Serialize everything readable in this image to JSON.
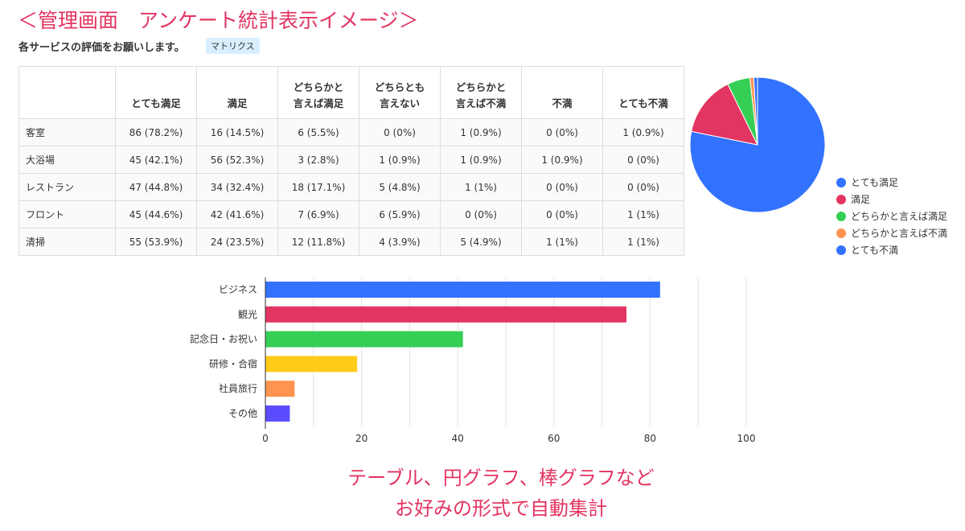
{
  "title": "＜管理画面　アンケート統計表示イメージ＞",
  "question": "各サービスの評価をお願いします。",
  "badge": "マトリクス",
  "table": {
    "headers": [
      "",
      "とても満足",
      "満足",
      "どちらかと\n言えば満足",
      "どちらとも\n言えない",
      "どちらかと\n言えば不満",
      "不満",
      "とても不満"
    ],
    "rows": [
      [
        "客室",
        "86 (78.2%)",
        "16 (14.5%)",
        "6 (5.5%)",
        "0 (0%)",
        "1 (0.9%)",
        "0 (0%)",
        "1 (0.9%)"
      ],
      [
        "大浴場",
        "45 (42.1%)",
        "56 (52.3%)",
        "3 (2.8%)",
        "1 (0.9%)",
        "1 (0.9%)",
        "1 (0.9%)",
        "0 (0%)"
      ],
      [
        "レストラン",
        "47 (44.8%)",
        "34 (32.4%)",
        "18 (17.1%)",
        "5 (4.8%)",
        "1 (1%)",
        "0 (0%)",
        "0 (0%)"
      ],
      [
        "フロント",
        "45 (44.6%)",
        "42 (41.6%)",
        "7 (6.9%)",
        "6 (5.9%)",
        "0 (0%)",
        "0 (0%)",
        "1 (1%)"
      ],
      [
        "清掃",
        "55 (53.9%)",
        "24 (23.5%)",
        "12 (11.8%)",
        "4 (3.9%)",
        "5 (4.9%)",
        "1 (1%)",
        "1 (1%)"
      ]
    ]
  },
  "chart_data": [
    {
      "type": "pie",
      "labels": [
        "とても満足",
        "満足",
        "どちらかと言えば満足",
        "どちらかと言えば不満",
        "とても不満"
      ],
      "values": [
        86,
        16,
        6,
        1,
        1
      ],
      "colors": [
        "#3372ff",
        "#e33562",
        "#36cf55",
        "#ff9450",
        "#3372ff"
      ],
      "legend": "right"
    },
    {
      "type": "bar",
      "orientation": "horizontal",
      "categories": [
        "ビジネス",
        "観光",
        "記念日・お祝い",
        "研修・合宿",
        "社員旅行",
        "その他"
      ],
      "values": [
        82,
        75,
        41,
        19,
        6,
        5
      ],
      "colors": [
        "#3372ff",
        "#e33562",
        "#36cf55",
        "#ffcc1a",
        "#ff9450",
        "#5b4dff"
      ],
      "xlim": [
        0,
        100
      ],
      "xticks": [
        "0",
        "20",
        "40",
        "60",
        "80",
        "100"
      ],
      "grid": true
    }
  ],
  "footer": [
    "テーブル、円グラフ、棒グラフなど",
    "お好みの形式で自動集計"
  ]
}
